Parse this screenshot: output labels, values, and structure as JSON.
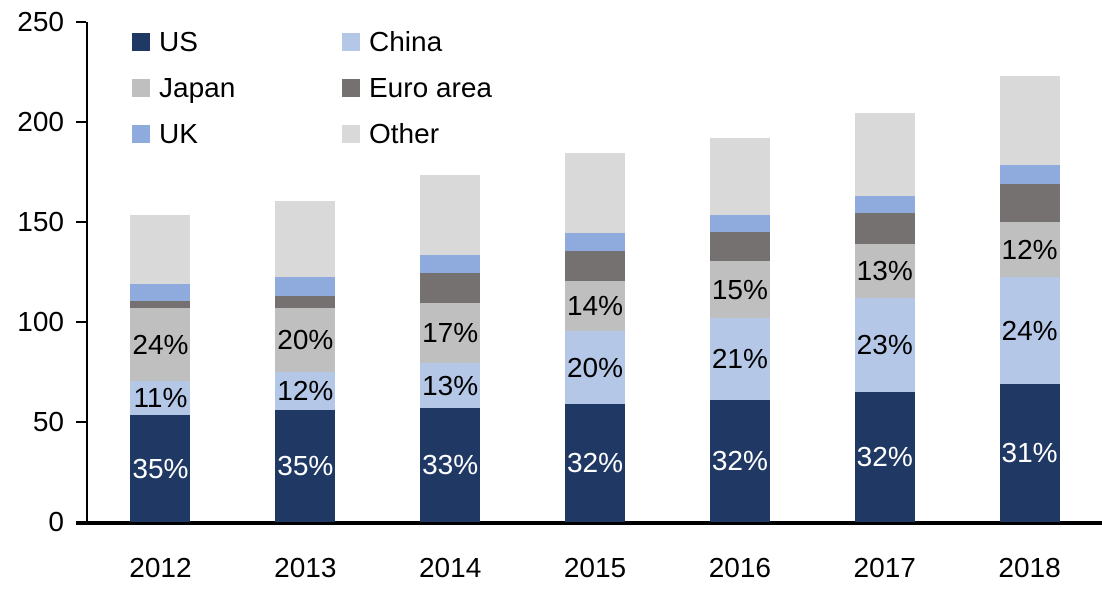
{
  "chart_data": {
    "type": "bar",
    "stacked": true,
    "title": "",
    "xlabel": "",
    "ylabel": "",
    "grid": false,
    "legend_position": "top-left-two-columns",
    "categories": [
      "2012",
      "2013",
      "2014",
      "2015",
      "2016",
      "2017",
      "2018"
    ],
    "series": [
      {
        "name": "US",
        "color": "#1F3864",
        "label_color": "#FFFFFF",
        "values": [
          53.5,
          56,
          57,
          59,
          61,
          65,
          69
        ],
        "labels": [
          "35%",
          "35%",
          "33%",
          "32%",
          "32%",
          "32%",
          "31%"
        ]
      },
      {
        "name": "China",
        "color": "#B4C7E7",
        "label_color": "#000000",
        "values": [
          17,
          19,
          22.5,
          36.5,
          41,
          47,
          53.5
        ],
        "labels": [
          "11%",
          "12%",
          "13%",
          "20%",
          "21%",
          "23%",
          "24%"
        ]
      },
      {
        "name": "Japan",
        "color": "#BFBFBF",
        "label_color": "#000000",
        "values": [
          36.5,
          32,
          30,
          25,
          28.5,
          27,
          27.5
        ],
        "labels": [
          "24%",
          "20%",
          "17%",
          "14%",
          "15%",
          "13%",
          "12%"
        ]
      },
      {
        "name": "Euro area",
        "color": "#767171",
        "label_color": "#000000",
        "values": [
          3.5,
          6,
          15,
          15,
          14.5,
          15.5,
          19
        ],
        "labels": [
          "",
          "",
          "",
          "",
          "",
          "",
          ""
        ]
      },
      {
        "name": "UK",
        "color": "#8FAADC",
        "label_color": "#000000",
        "values": [
          8.5,
          9.5,
          9,
          9,
          8.5,
          8.5,
          9.5
        ],
        "labels": [
          "",
          "",
          "",
          "",
          "",
          "",
          ""
        ]
      },
      {
        "name": "Other",
        "color": "#D9D9D9",
        "label_color": "#000000",
        "values": [
          34.5,
          38,
          40,
          40,
          38.5,
          41.5,
          44.5
        ],
        "labels": [
          "",
          "",
          "",
          "",
          "",
          "",
          ""
        ]
      }
    ],
    "totals": [
      153.5,
      160.5,
      173.5,
      184.5,
      192,
      204.5,
      223
    ],
    "y_axis": {
      "min": 0,
      "max": 250,
      "tick_step": 50,
      "tick_labels": [
        "0",
        "50",
        "100",
        "150",
        "200",
        "250"
      ]
    },
    "colors": {
      "axis": "#000000",
      "background": "#FFFFFF"
    }
  }
}
